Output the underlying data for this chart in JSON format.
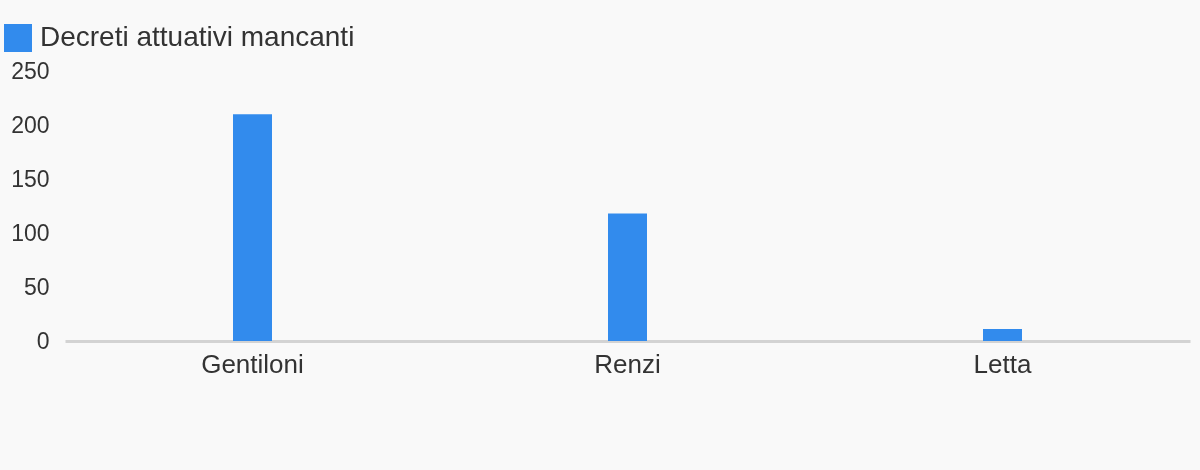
{
  "chart_data": {
    "type": "bar",
    "categories": [
      "Gentiloni",
      "Renzi",
      "Letta"
    ],
    "series": [
      {
        "name": "Decreti attuativi mancanti",
        "color": "#328bed",
        "values": [
          210,
          118,
          11
        ]
      }
    ],
    "ylim": [
      0,
      250
    ],
    "yticks": [
      0,
      50,
      100,
      150,
      200,
      250
    ],
    "legend": "top left"
  }
}
